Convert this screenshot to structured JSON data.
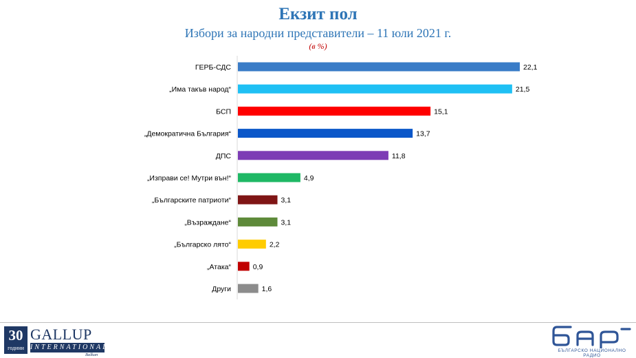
{
  "chart_data": {
    "type": "bar",
    "orientation": "horizontal",
    "title": "Екзит пол",
    "subtitle": "Избори за народни представители – 11 юли 2021 г.",
    "unit_note": "(в %)",
    "categories": [
      "ГЕРБ-СДС",
      "„Има такъв народ“",
      "БСП",
      "„Демократична България“",
      "ДПС",
      "„Изправи се! Мутри вън!“",
      "„Българските патриоти“",
      "„Възраждане“",
      "„Българско лято“",
      "„Атака“",
      "Други"
    ],
    "values": [
      22.1,
      21.5,
      15.1,
      13.7,
      11.8,
      4.9,
      3.1,
      3.1,
      2.2,
      0.9,
      1.6
    ],
    "value_labels": [
      "22,1",
      "21,5",
      "15,1",
      "13,7",
      "11,8",
      "4,9",
      "3,1",
      "3,1",
      "2,2",
      "0,9",
      "1,6"
    ],
    "colors": [
      "#3a7cc7",
      "#1fc0f4",
      "#ff0000",
      "#0b57c9",
      "#7d3cb5",
      "#1fb865",
      "#7f1515",
      "#5e8a3a",
      "#ffcc00",
      "#c00000",
      "#8c8c8c"
    ],
    "xlim": [
      0,
      22.1
    ],
    "grid": false,
    "legend": false
  },
  "footer": {
    "gallup": {
      "years": "30",
      "years_caption": "години",
      "name": "GALLUP",
      "international": "INTERNATIONAL",
      "country": "Balkan"
    },
    "bnr": {
      "logo_text": "бнр",
      "caption": "БЪЛГАРСКО НАЦИОНАЛНО РАДИО"
    }
  }
}
